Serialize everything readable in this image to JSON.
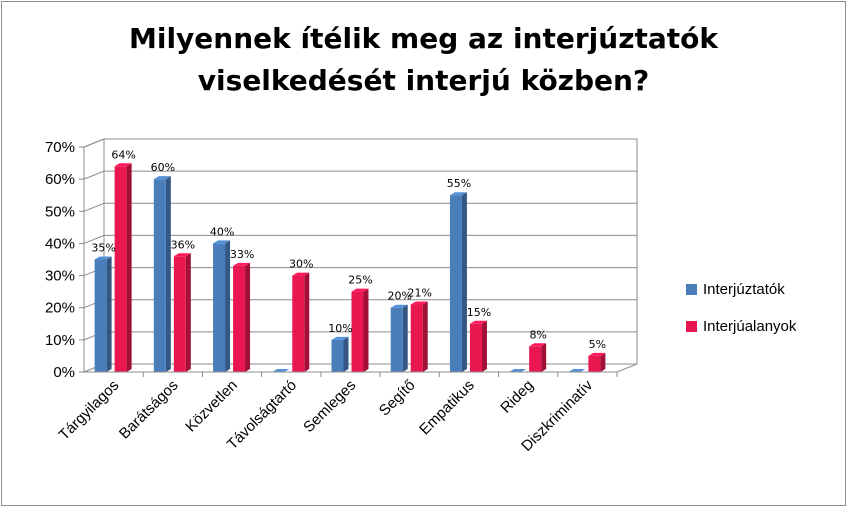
{
  "chart_data": {
    "type": "bar",
    "title": "Milyennek ítélik meg az interjúztatók viselkedését interjú közben?",
    "title_lines": [
      "Milyennek ítélik meg az interjúztatók",
      "viselkedését interjú közben?"
    ],
    "categories": [
      "Tárgyilagos",
      "Barátságos",
      "Közvetlen",
      "Távolságtartó",
      "Semleges",
      "Segítő",
      "Empatikus",
      "Rideg",
      "Diszkriminatív"
    ],
    "series": [
      {
        "name": "Interjúztatók",
        "color": "#4a7ebb",
        "values": [
          35,
          60,
          40,
          0,
          10,
          20,
          55,
          0,
          0
        ],
        "labels": [
          "35%",
          "60%",
          "40%",
          "",
          "10%",
          "20%",
          "55%",
          "",
          ""
        ]
      },
      {
        "name": "Interjúalanyok",
        "color": "#e8174f",
        "values": [
          64,
          36,
          33,
          30,
          25,
          21,
          15,
          8,
          5
        ],
        "labels": [
          "64%",
          "36%",
          "33%",
          "30%",
          "25%",
          "21%",
          "15%",
          "8%",
          "5%"
        ]
      }
    ],
    "y_ticks": [
      "0%",
      "10%",
      "20%",
      "30%",
      "40%",
      "50%",
      "60%",
      "70%"
    ],
    "ylim": [
      0,
      70
    ],
    "grid": true,
    "legend": "right",
    "style": "3d-clustered-column"
  }
}
